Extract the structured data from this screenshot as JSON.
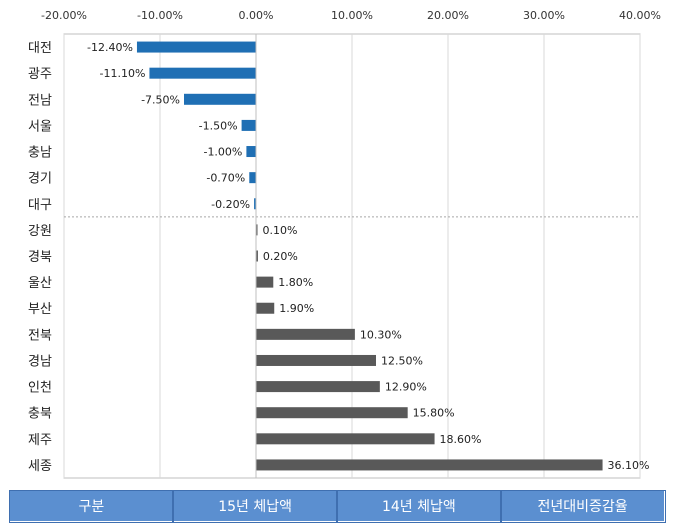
{
  "chart_data": {
    "type": "bar",
    "orientation": "horizontal",
    "categories": [
      "대전",
      "광주",
      "전남",
      "서울",
      "충남",
      "경기",
      "대구",
      "강원",
      "경북",
      "울산",
      "부산",
      "전북",
      "경남",
      "인천",
      "충북",
      "제주",
      "세종"
    ],
    "values": [
      -12.4,
      -11.1,
      -7.5,
      -1.5,
      -1.0,
      -0.7,
      -0.2,
      0.1,
      0.2,
      1.8,
      1.9,
      10.3,
      12.5,
      12.9,
      15.8,
      18.6,
      36.1
    ],
    "data_labels": [
      "-12.40%",
      "-11.10%",
      "-7.50%",
      "-1.50%",
      "-1.00%",
      "-0.70%",
      "-0.20%",
      "0.10%",
      "0.20%",
      "1.80%",
      "1.90%",
      "10.30%",
      "12.50%",
      "12.90%",
      "15.80%",
      "18.60%",
      "36.10%"
    ],
    "xlim": [
      -20,
      40
    ],
    "x_ticks": [
      -20,
      -10,
      0,
      10,
      20,
      30,
      40
    ],
    "x_tick_labels": [
      "-20.00%",
      "-10.00%",
      "0.00%",
      "10.00%",
      "20.00%",
      "30.00%",
      "40.00%"
    ],
    "grid": true,
    "colors": {
      "negative": "#1f6fb4",
      "positive": "#595959",
      "grid": "#d9d9d9"
    }
  },
  "footer": {
    "cells": [
      "구분",
      "15년 체납액",
      "14년 체납액",
      "전년대비증감율"
    ]
  }
}
